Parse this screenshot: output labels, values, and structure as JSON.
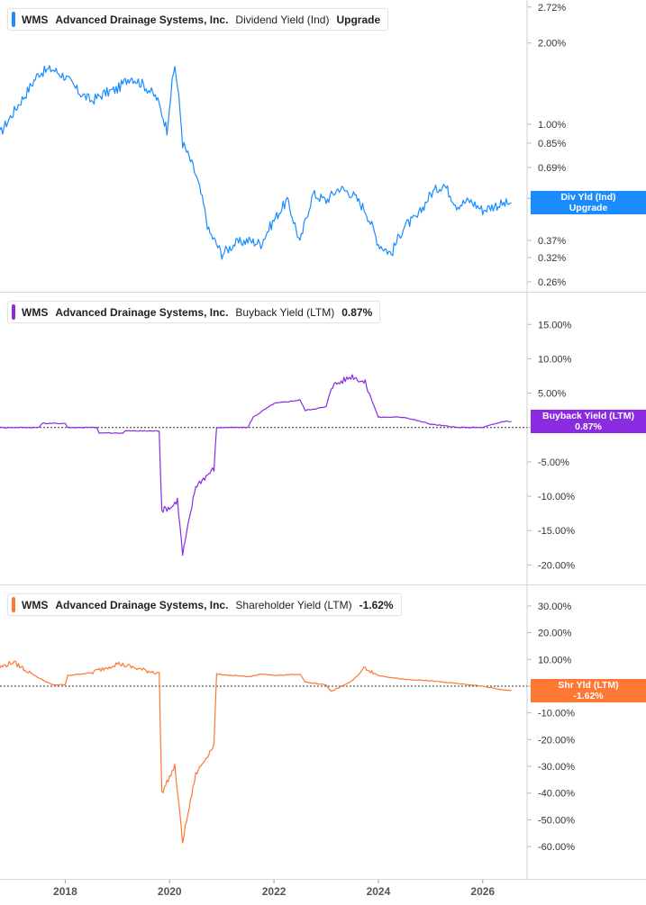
{
  "chart_data": [
    {
      "type": "line",
      "name": "dividend-yield",
      "legend": {
        "ticker": "WMS",
        "company": "Advanced Drainage Systems, Inc.",
        "metric": "Dividend Yield (Ind)",
        "value": "Upgrade"
      },
      "tag": {
        "line1": "Div Yld (Ind)",
        "line2": "Upgrade",
        "color": "#1a8cff"
      },
      "color": "#1a8cff",
      "scale": "log",
      "ylim": [
        0.25,
        2.8
      ],
      "yticks": [
        {
          "v": 2.72,
          "label": "2.72%"
        },
        {
          "v": 2.0,
          "label": "2.00%"
        },
        {
          "v": 1.0,
          "label": "1.00%"
        },
        {
          "v": 0.85,
          "label": "0.85%"
        },
        {
          "v": 0.69,
          "label": "0.69%"
        },
        {
          "v": 0.53,
          "label": "0.53%"
        },
        {
          "v": 0.37,
          "label": "0.37%"
        },
        {
          "v": 0.32,
          "label": "0.32%"
        },
        {
          "v": 0.26,
          "label": "0.26%"
        }
      ],
      "x": [
        2016.75,
        2017.0,
        2017.25,
        2017.5,
        2017.75,
        2018.0,
        2018.25,
        2018.5,
        2018.75,
        2019.0,
        2019.25,
        2019.5,
        2019.75,
        2019.95,
        2020.1,
        2020.25,
        2020.5,
        2020.75,
        2021.0,
        2021.25,
        2021.5,
        2021.75,
        2022.0,
        2022.25,
        2022.5,
        2022.75,
        2023.0,
        2023.25,
        2023.5,
        2023.75,
        2024.0,
        2024.25,
        2024.5,
        2024.75,
        2025.0,
        2025.25,
        2025.5,
        2025.75,
        2026.0,
        2026.25,
        2026.55
      ],
      "y": [
        0.92,
        1.1,
        1.3,
        1.55,
        1.6,
        1.5,
        1.32,
        1.22,
        1.3,
        1.35,
        1.5,
        1.4,
        1.25,
        0.95,
        1.65,
        0.85,
        0.65,
        0.4,
        0.33,
        0.36,
        0.37,
        0.36,
        0.44,
        0.52,
        0.36,
        0.55,
        0.52,
        0.58,
        0.55,
        0.48,
        0.36,
        0.33,
        0.42,
        0.45,
        0.55,
        0.6,
        0.5,
        0.52,
        0.48,
        0.5,
        0.51
      ]
    },
    {
      "type": "line",
      "name": "buyback-yield",
      "legend": {
        "ticker": "WMS",
        "company": "Advanced Drainage Systems, Inc.",
        "metric": "Buyback Yield (LTM)",
        "value": "0.87%"
      },
      "tag": {
        "line1": "Buyback Yield (LTM)",
        "line2": "0.87%",
        "color": "#8a2be2"
      },
      "color": "#8a2be2",
      "scale": "linear",
      "ylim": [
        -21,
        17
      ],
      "zero_line": true,
      "yticks": [
        {
          "v": 15,
          "label": "15.00%"
        },
        {
          "v": 10,
          "label": "10.00%"
        },
        {
          "v": 5,
          "label": "5.00%"
        },
        {
          "v": 0,
          "label": "0.00%"
        },
        {
          "v": -5,
          "label": "-5.00%"
        },
        {
          "v": -10,
          "label": "-10.00%"
        },
        {
          "v": -15,
          "label": "-15.00%"
        },
        {
          "v": -20,
          "label": "-20.00%"
        }
      ],
      "x": [
        2016.75,
        2017.5,
        2017.55,
        2018.0,
        2018.05,
        2018.6,
        2018.65,
        2019.1,
        2019.15,
        2019.8,
        2019.85,
        2020.05,
        2020.15,
        2020.25,
        2020.5,
        2020.85,
        2020.9,
        2021.5,
        2021.6,
        2022.0,
        2022.5,
        2022.6,
        2023.0,
        2023.1,
        2023.5,
        2023.75,
        2024.0,
        2024.5,
        2025.0,
        2025.5,
        2025.8,
        2026.0,
        2026.4,
        2026.55
      ],
      "y": [
        0.0,
        0.0,
        0.6,
        0.6,
        0.0,
        0.0,
        -0.8,
        -0.8,
        -0.5,
        -0.5,
        -12.0,
        -11.5,
        -10.5,
        -18.5,
        -8.5,
        -6.0,
        0.0,
        0.0,
        1.5,
        3.5,
        4.0,
        2.5,
        3.0,
        6.0,
        7.5,
        6.5,
        1.5,
        1.5,
        0.5,
        0.0,
        0.0,
        0.0,
        0.9,
        0.87
      ]
    },
    {
      "type": "line",
      "name": "shareholder-yield",
      "legend": {
        "ticker": "WMS",
        "company": "Advanced Drainage Systems, Inc.",
        "metric": "Shareholder Yield (LTM)",
        "value": "-1.62%"
      },
      "tag": {
        "line1": "Shr Yld (LTM)",
        "line2": "-1.62%",
        "color": "#ff7733"
      },
      "color": "#ff7733",
      "scale": "linear",
      "ylim": [
        -64,
        33
      ],
      "zero_line": true,
      "yticks": [
        {
          "v": 30,
          "label": "30.00%"
        },
        {
          "v": 20,
          "label": "20.00%"
        },
        {
          "v": 10,
          "label": "10.00%"
        },
        {
          "v": 0,
          "label": "0.00%"
        },
        {
          "v": -10,
          "label": "-10.00%"
        },
        {
          "v": -20,
          "label": "-20.00%"
        },
        {
          "v": -30,
          "label": "-30.00%"
        },
        {
          "v": -40,
          "label": "-40.00%"
        },
        {
          "v": -50,
          "label": "-50.00%"
        },
        {
          "v": -60,
          "label": "-60.00%"
        }
      ],
      "x": [
        2016.75,
        2017.0,
        2017.5,
        2017.75,
        2018.0,
        2018.05,
        2018.5,
        2019.0,
        2019.5,
        2019.8,
        2019.85,
        2020.1,
        2020.25,
        2020.5,
        2020.85,
        2020.9,
        2021.5,
        2021.75,
        2022.0,
        2022.5,
        2022.6,
        2023.0,
        2023.1,
        2023.5,
        2023.75,
        2024.0,
        2024.5,
        2025.0,
        2025.5,
        2026.0,
        2026.4,
        2026.55
      ],
      "y": [
        7.0,
        9.0,
        3.0,
        0.5,
        0.5,
        4.0,
        5.0,
        8.5,
        6.0,
        5.0,
        -40.0,
        -30.0,
        -58.0,
        -33.0,
        -22.0,
        4.5,
        3.5,
        4.5,
        4.0,
        4.5,
        1.5,
        0.5,
        -2.0,
        2.0,
        7.0,
        4.0,
        2.5,
        2.0,
        1.0,
        0.0,
        -1.5,
        -1.62
      ]
    }
  ],
  "x_axis": {
    "ticks": [
      {
        "v": 2018,
        "label": "2018"
      },
      {
        "v": 2020,
        "label": "2020"
      },
      {
        "v": 2022,
        "label": "2022"
      },
      {
        "v": 2024,
        "label": "2024"
      },
      {
        "v": 2026,
        "label": "2026"
      }
    ],
    "range": [
      2016.75,
      2026.85
    ]
  }
}
